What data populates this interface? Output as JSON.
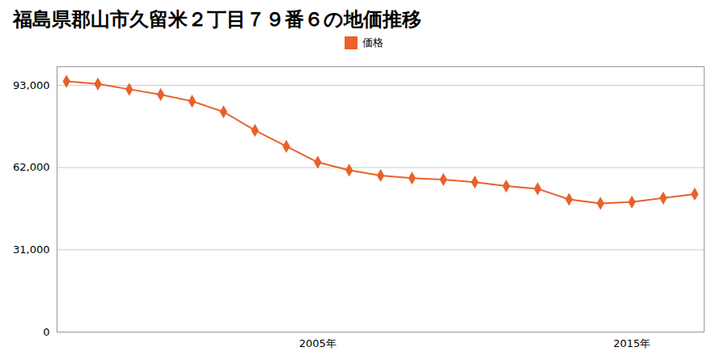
{
  "chart_data": {
    "type": "line",
    "title": "福島県郡山市久留米２丁目７９番６の地価推移",
    "x": [
      1997,
      1998,
      1999,
      2000,
      2001,
      2002,
      2003,
      2004,
      2005,
      2006,
      2007,
      2008,
      2009,
      2010,
      2011,
      2012,
      2013,
      2014,
      2015,
      2016,
      2017
    ],
    "series": [
      {
        "name": "価格",
        "color": "#e8622a",
        "marker": "diamond",
        "values": [
          94500,
          93500,
          91500,
          89500,
          87000,
          83000,
          76000,
          70000,
          64000,
          61000,
          59000,
          58000,
          57500,
          56500,
          55000,
          54000,
          50000,
          48500,
          49000,
          50500,
          52000
        ]
      }
    ],
    "xlim": [
      1996.7,
      2017.3
    ],
    "xticks": [
      {
        "value": 2005,
        "label": "2005年"
      },
      {
        "value": 2015,
        "label": "2015年"
      }
    ],
    "ylim": [
      0,
      100000
    ],
    "yticks": [
      0,
      {
        "value": 31000,
        "label": "31,000"
      },
      {
        "value": 62000,
        "label": "62,000"
      },
      {
        "value": 93000,
        "label": "93,000"
      }
    ],
    "grid": true,
    "legend": "top"
  }
}
